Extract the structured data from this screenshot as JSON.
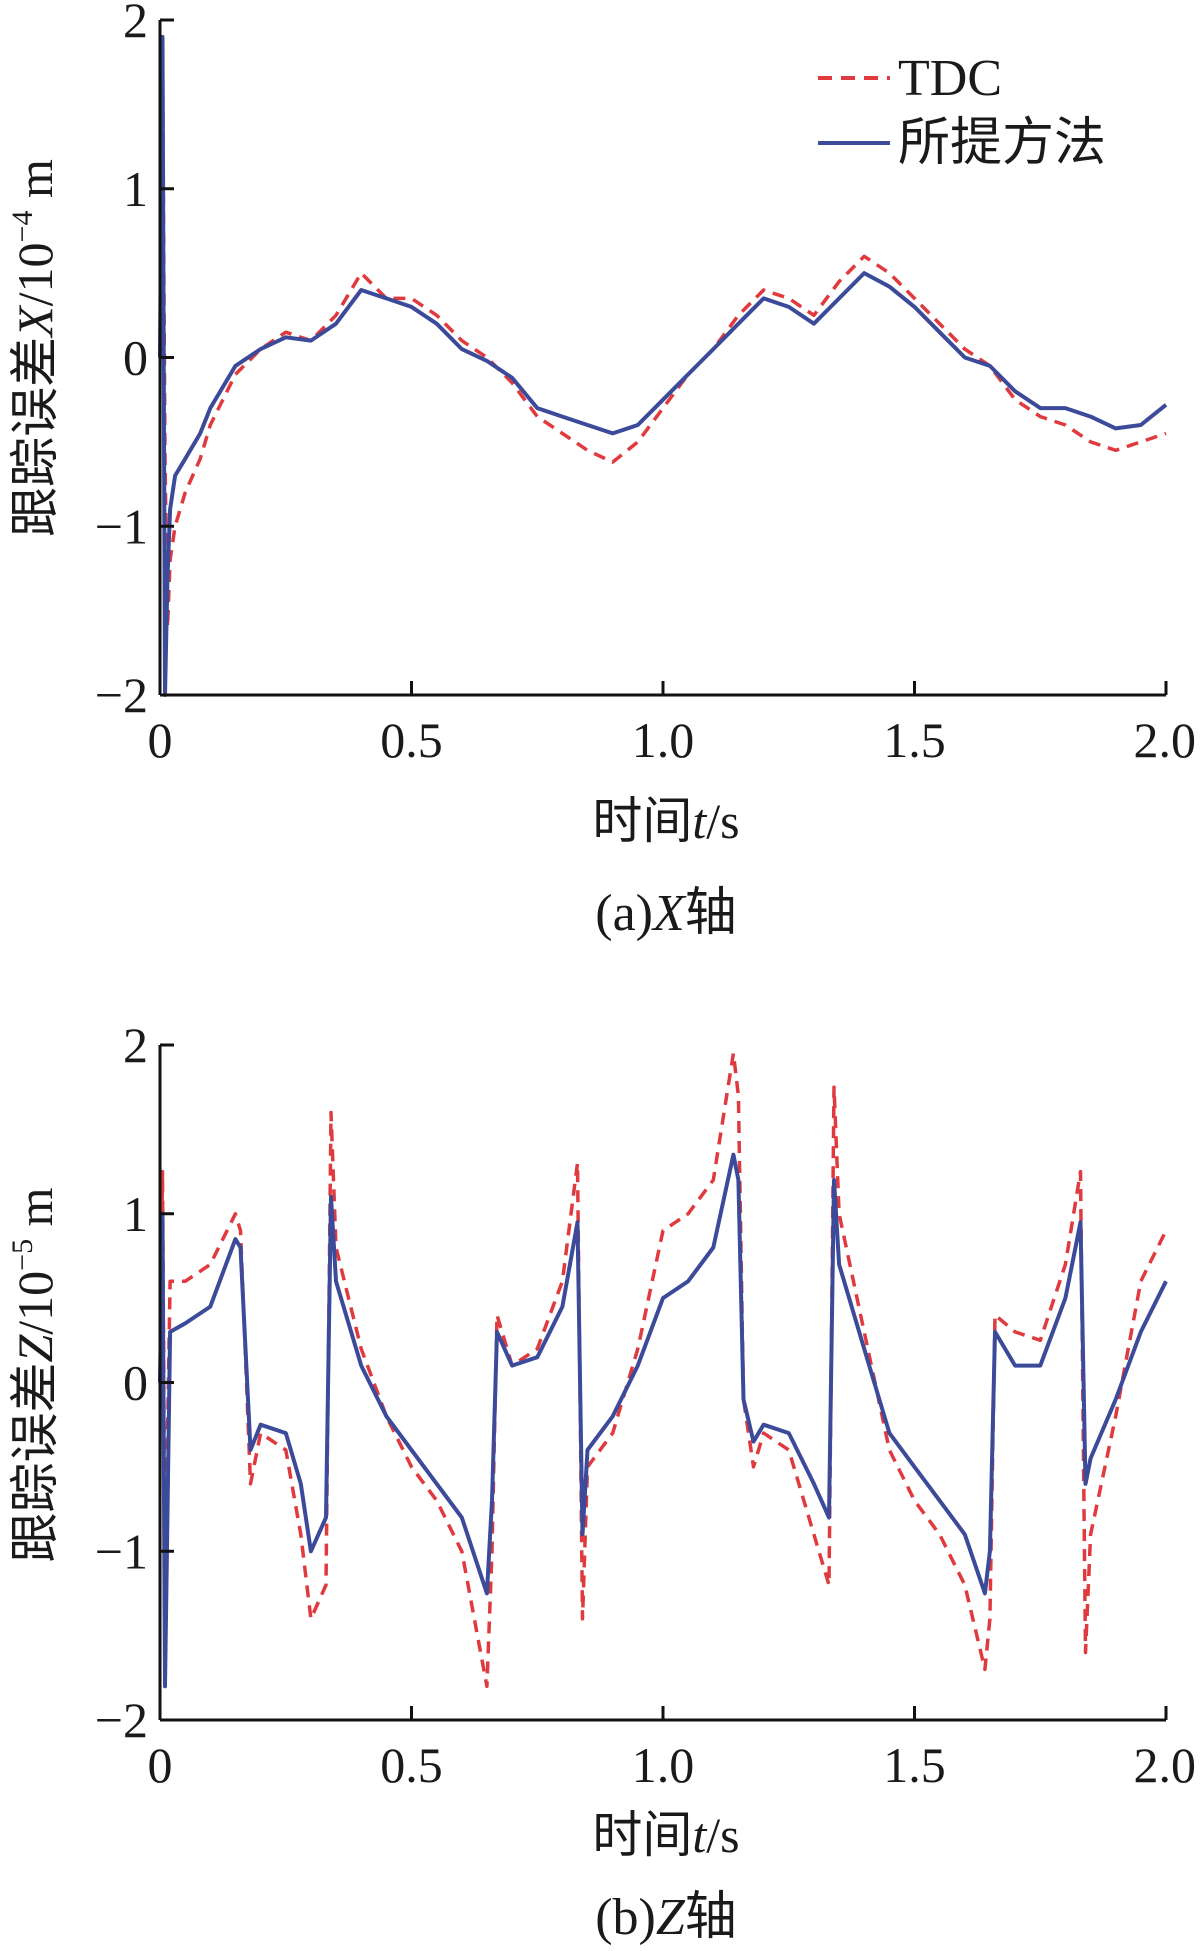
{
  "figure": {
    "legend": {
      "tdc_label": "TDC",
      "proposed_label": "所提方法"
    }
  },
  "chart_data": [
    {
      "type": "line",
      "caption": "(a)X轴",
      "caption_prefix": "(a)",
      "caption_axis_letter": "X",
      "caption_suffix": "轴",
      "xlabel_prefix": "时间",
      "xlabel_var": "t",
      "xlabel_unit": "/s",
      "ylabel_prefix": "跟踪误差",
      "ylabel_var": "X",
      "ylabel_unit_base": "/10",
      "ylabel_unit_exp": "−4",
      "ylabel_unit_suffix": " m",
      "xlim": [
        0,
        2.0
      ],
      "ylim": [
        -2,
        2
      ],
      "xticks": [
        0,
        0.5,
        1.0,
        1.5,
        2.0
      ],
      "xtick_labels": [
        "0",
        "0.5",
        "1.0",
        "1.5",
        "2.0"
      ],
      "yticks": [
        -2,
        -1,
        0,
        1,
        2
      ],
      "ytick_labels": [
        "−2",
        "−1",
        "0",
        "1",
        "2"
      ],
      "legend_position": "top-right",
      "series": [
        {
          "name": "TDC",
          "color": "#e03a3e",
          "style": "dashed",
          "x": [
            0,
            0.005,
            0.01,
            0.015,
            0.02,
            0.03,
            0.05,
            0.08,
            0.1,
            0.15,
            0.2,
            0.25,
            0.3,
            0.35,
            0.4,
            0.45,
            0.5,
            0.55,
            0.6,
            0.65,
            0.7,
            0.75,
            0.8,
            0.85,
            0.9,
            0.95,
            1.0,
            1.05,
            1.1,
            1.15,
            1.2,
            1.25,
            1.3,
            1.35,
            1.4,
            1.45,
            1.5,
            1.55,
            1.6,
            1.65,
            1.7,
            1.75,
            1.8,
            1.85,
            1.9,
            1.95,
            2.0
          ],
          "y": [
            0,
            1.85,
            -0.6,
            -1.6,
            -1.2,
            -1.0,
            -0.8,
            -0.6,
            -0.4,
            -0.1,
            0.05,
            0.15,
            0.1,
            0.25,
            0.5,
            0.35,
            0.35,
            0.25,
            0.1,
            0.0,
            -0.15,
            -0.35,
            -0.45,
            -0.55,
            -0.62,
            -0.5,
            -0.3,
            -0.1,
            0.05,
            0.25,
            0.4,
            0.35,
            0.25,
            0.45,
            0.6,
            0.5,
            0.35,
            0.2,
            0.05,
            -0.05,
            -0.25,
            -0.35,
            -0.4,
            -0.5,
            -0.55,
            -0.5,
            -0.45
          ]
        },
        {
          "name": "所提方法",
          "color": "#3c4a9a",
          "style": "solid",
          "x": [
            0,
            0.005,
            0.01,
            0.015,
            0.02,
            0.03,
            0.05,
            0.08,
            0.1,
            0.15,
            0.2,
            0.25,
            0.3,
            0.35,
            0.4,
            0.45,
            0.5,
            0.55,
            0.6,
            0.65,
            0.7,
            0.75,
            0.8,
            0.85,
            0.9,
            0.95,
            1.0,
            1.05,
            1.1,
            1.15,
            1.2,
            1.25,
            1.3,
            1.35,
            1.4,
            1.45,
            1.5,
            1.55,
            1.6,
            1.65,
            1.7,
            1.75,
            1.8,
            1.85,
            1.9,
            1.95,
            2.0
          ],
          "y": [
            0,
            1.9,
            -2.0,
            -1.3,
            -0.9,
            -0.7,
            -0.6,
            -0.45,
            -0.3,
            -0.05,
            0.05,
            0.12,
            0.1,
            0.2,
            0.4,
            0.35,
            0.3,
            0.2,
            0.05,
            -0.02,
            -0.12,
            -0.3,
            -0.35,
            -0.4,
            -0.45,
            -0.4,
            -0.25,
            -0.1,
            0.05,
            0.2,
            0.35,
            0.3,
            0.2,
            0.35,
            0.5,
            0.42,
            0.3,
            0.15,
            0.0,
            -0.05,
            -0.2,
            -0.3,
            -0.3,
            -0.35,
            -0.42,
            -0.4,
            -0.28
          ]
        }
      ]
    },
    {
      "type": "line",
      "caption": "(b)Z轴",
      "caption_prefix": "(b)",
      "caption_axis_letter": "Z",
      "caption_suffix": "轴",
      "xlabel_prefix": "时间",
      "xlabel_var": "t",
      "xlabel_unit": "/s",
      "ylabel_prefix": "跟踪误差",
      "ylabel_var": "Z",
      "ylabel_unit_base": "/10",
      "ylabel_unit_exp": "−5",
      "ylabel_unit_suffix": " m",
      "xlim": [
        0,
        2.0
      ],
      "ylim": [
        -2,
        2
      ],
      "xticks": [
        0,
        0.5,
        1.0,
        1.5,
        2.0
      ],
      "xtick_labels": [
        "0",
        "0.5",
        "1.0",
        "1.5",
        "2.0"
      ],
      "yticks": [
        -2,
        -1,
        0,
        1,
        2
      ],
      "ytick_labels": [
        "−2",
        "−1",
        "0",
        "1",
        "2"
      ],
      "series": [
        {
          "name": "TDC",
          "color": "#e03a3e",
          "style": "dashed",
          "x": [
            0,
            0.005,
            0.01,
            0.02,
            0.05,
            0.1,
            0.15,
            0.16,
            0.18,
            0.2,
            0.25,
            0.28,
            0.3,
            0.33,
            0.34,
            0.35,
            0.4,
            0.45,
            0.5,
            0.55,
            0.6,
            0.65,
            0.66,
            0.67,
            0.7,
            0.75,
            0.8,
            0.83,
            0.84,
            0.85,
            0.9,
            0.95,
            1.0,
            1.05,
            1.1,
            1.14,
            1.15,
            1.16,
            1.18,
            1.2,
            1.25,
            1.3,
            1.33,
            1.34,
            1.35,
            1.4,
            1.45,
            1.5,
            1.55,
            1.6,
            1.64,
            1.65,
            1.66,
            1.7,
            1.75,
            1.8,
            1.83,
            1.84,
            1.85,
            1.9,
            1.95,
            2.0
          ],
          "y": [
            0,
            1.25,
            -1.2,
            0.6,
            0.6,
            0.7,
            1.0,
            0.9,
            -0.6,
            -0.3,
            -0.4,
            -0.9,
            -1.4,
            -1.2,
            1.6,
            0.8,
            0.2,
            -0.2,
            -0.5,
            -0.7,
            -1.0,
            -1.8,
            -1.0,
            0.4,
            0.1,
            0.2,
            0.6,
            1.3,
            -1.4,
            -0.5,
            -0.3,
            0.2,
            0.9,
            1.0,
            1.2,
            1.95,
            1.7,
            -0.1,
            -0.5,
            -0.3,
            -0.4,
            -0.9,
            -1.2,
            1.75,
            1.0,
            0.3,
            -0.4,
            -0.7,
            -0.9,
            -1.2,
            -1.7,
            -1.4,
            0.4,
            0.3,
            0.25,
            0.7,
            1.25,
            -1.6,
            -0.9,
            -0.2,
            0.6,
            0.9
          ]
        },
        {
          "name": "所提方法",
          "color": "#3c4a9a",
          "style": "solid",
          "x": [
            0,
            0.005,
            0.01,
            0.02,
            0.05,
            0.1,
            0.15,
            0.16,
            0.18,
            0.2,
            0.25,
            0.28,
            0.3,
            0.33,
            0.34,
            0.35,
            0.4,
            0.45,
            0.5,
            0.55,
            0.6,
            0.65,
            0.66,
            0.67,
            0.7,
            0.75,
            0.8,
            0.83,
            0.84,
            0.85,
            0.9,
            0.95,
            1.0,
            1.05,
            1.1,
            1.14,
            1.15,
            1.16,
            1.18,
            1.2,
            1.25,
            1.3,
            1.33,
            1.34,
            1.35,
            1.4,
            1.45,
            1.5,
            1.55,
            1.6,
            1.64,
            1.65,
            1.66,
            1.7,
            1.75,
            1.8,
            1.83,
            1.84,
            1.85,
            1.9,
            1.95,
            2.0
          ],
          "y": [
            0,
            1.0,
            -1.8,
            0.3,
            0.35,
            0.45,
            0.85,
            0.8,
            -0.4,
            -0.25,
            -0.3,
            -0.6,
            -1.0,
            -0.8,
            1.1,
            0.6,
            0.1,
            -0.2,
            -0.4,
            -0.6,
            -0.8,
            -1.25,
            -0.7,
            0.3,
            0.1,
            0.15,
            0.45,
            0.95,
            -0.9,
            -0.4,
            -0.2,
            0.1,
            0.5,
            0.6,
            0.8,
            1.35,
            1.2,
            -0.1,
            -0.35,
            -0.25,
            -0.3,
            -0.6,
            -0.8,
            1.2,
            0.7,
            0.2,
            -0.3,
            -0.5,
            -0.7,
            -0.9,
            -1.25,
            -1.0,
            0.3,
            0.1,
            0.1,
            0.5,
            0.95,
            -0.6,
            -0.45,
            -0.1,
            0.3,
            0.6
          ]
        }
      ]
    }
  ]
}
